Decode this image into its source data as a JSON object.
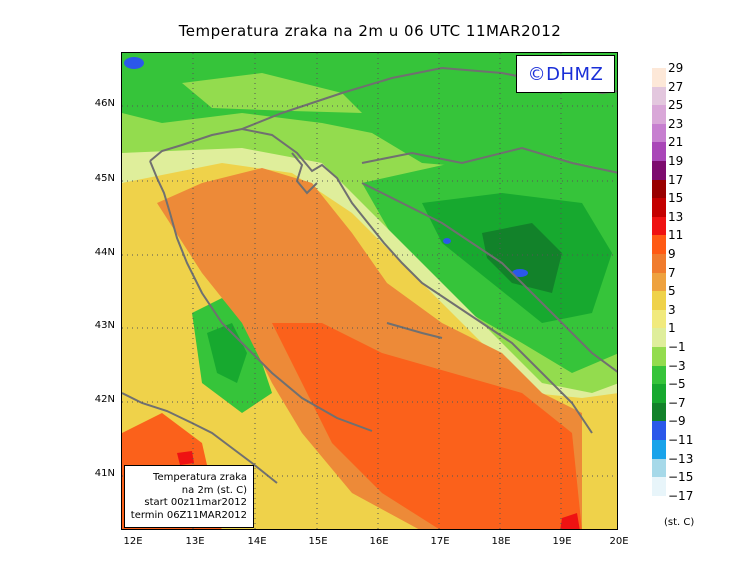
{
  "title": "Temperatura zraka na 2m u 06 UTC 11MAR2012",
  "copyright": "©DHMZ",
  "infobox": {
    "line1": "Temperatura zraka",
    "line2": "na 2m (st. C)",
    "line3": "start 00z11mar2012",
    "line4": "termin 06Z11MAR2012"
  },
  "axes": {
    "lat_labels": [
      "46N",
      "45N",
      "44N",
      "43N",
      "42N",
      "41N"
    ],
    "lon_labels": [
      "12E",
      "13E",
      "14E",
      "15E",
      "16E",
      "17E",
      "18E",
      "19E",
      "20E"
    ]
  },
  "legend": {
    "labels": [
      "29",
      "27",
      "25",
      "23",
      "21",
      "19",
      "17",
      "15",
      "13",
      "11",
      "9",
      "7",
      "5",
      "3",
      "1",
      "−1",
      "−3",
      "−5",
      "−7",
      "−9",
      "−11",
      "−13",
      "−15",
      "−17"
    ],
    "colors": [
      "#fde8d8",
      "#e3c7de",
      "#d9a7d8",
      "#c77fd0",
      "#a946b8",
      "#7d0b6e",
      "#990000",
      "#c40000",
      "#ef1212",
      "#ff5a14",
      "#f07c2e",
      "#eea23f",
      "#efd24a",
      "#f1ea7d",
      "#dfee9b",
      "#93dc4e",
      "#36c43a",
      "#17a92f",
      "#12822a",
      "#2b58ea",
      "#19a3ea",
      "#a6d9e9",
      "#e8f5fa"
    ],
    "units": "(st. C)"
  },
  "map": {
    "colors": {
      "sea_warm": "#ed8a38",
      "sea_hot": "#fb611b",
      "sea_red": "#ef1212",
      "coast_yellow": "#efd24a",
      "coast_light": "#f1ea7d",
      "pale": "#dfee9b",
      "green_light": "#93dc4e",
      "green": "#36c43a",
      "green_mid": "#17a92f",
      "green_dark": "#12822a",
      "blue": "#2b58ea",
      "coast": "#707070"
    }
  }
}
